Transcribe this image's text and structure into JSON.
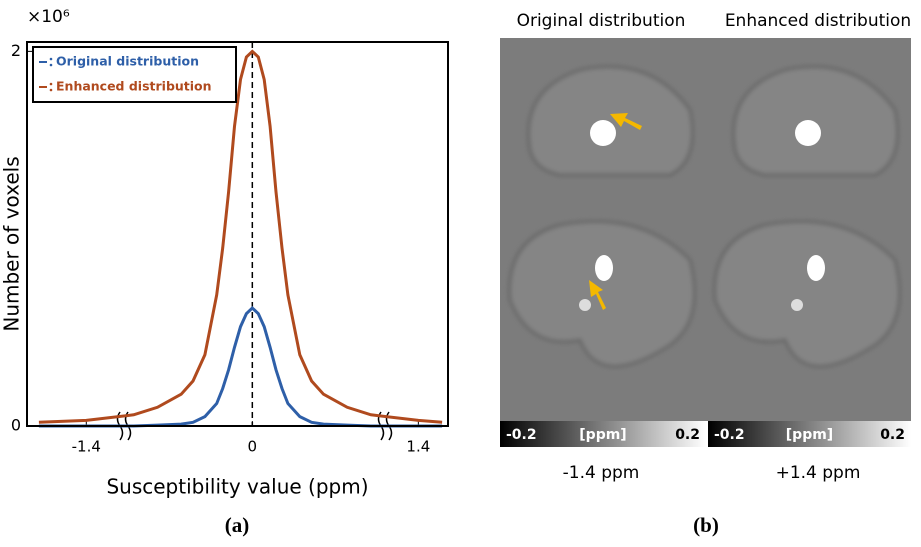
{
  "chart_data": {
    "type": "line",
    "y_multiplier": "×10⁶",
    "xlabel": "Susceptibility value (ppm)",
    "ylabel": "Number of voxels",
    "x": [
      -1.8,
      -1.4,
      -1.0,
      -0.8,
      -0.6,
      -0.5,
      -0.4,
      -0.3,
      -0.25,
      -0.2,
      -0.15,
      -0.1,
      -0.05,
      0,
      0.05,
      0.1,
      0.15,
      0.2,
      0.25,
      0.3,
      0.4,
      0.5,
      0.6,
      0.8,
      1.0,
      1.4,
      1.6
    ],
    "series": [
      {
        "name": "Original distribution",
        "color": "#2e5fa8",
        "values": [
          0,
          0,
          0,
          0.005,
          0.01,
          0.02,
          0.05,
          0.12,
          0.2,
          0.3,
          0.42,
          0.53,
          0.6,
          0.63,
          0.6,
          0.53,
          0.42,
          0.3,
          0.2,
          0.12,
          0.05,
          0.02,
          0.01,
          0.005,
          0,
          0,
          0
        ]
      },
      {
        "name": "Enhanced distribution",
        "color": "#b04a1e",
        "values": [
          0.02,
          0.03,
          0.06,
          0.1,
          0.17,
          0.24,
          0.38,
          0.7,
          0.95,
          1.25,
          1.6,
          1.85,
          1.97,
          2.0,
          1.97,
          1.85,
          1.6,
          1.25,
          0.95,
          0.7,
          0.38,
          0.24,
          0.17,
          0.1,
          0.06,
          0.03,
          0.02
        ]
      }
    ],
    "xlim": [
      -1.9,
      1.65
    ],
    "xticks": [
      -1.4,
      0,
      1.4
    ],
    "ylim": [
      0,
      2.05
    ],
    "yticks": [
      0,
      2
    ],
    "reference_line_x": 0,
    "legend": "upper left"
  },
  "panel_a_label": "(a)",
  "panel_b": {
    "column_titles": [
      "Original distribution",
      "Enhanced distribution"
    ],
    "colorbars": [
      [
        "-0.2",
        "[ppm]",
        "0.2"
      ],
      [
        "-0.2",
        "[ppm]",
        "0.2"
      ]
    ],
    "captions": [
      "-1.4 ppm",
      "+1.4 ppm"
    ],
    "label": "(b)"
  }
}
